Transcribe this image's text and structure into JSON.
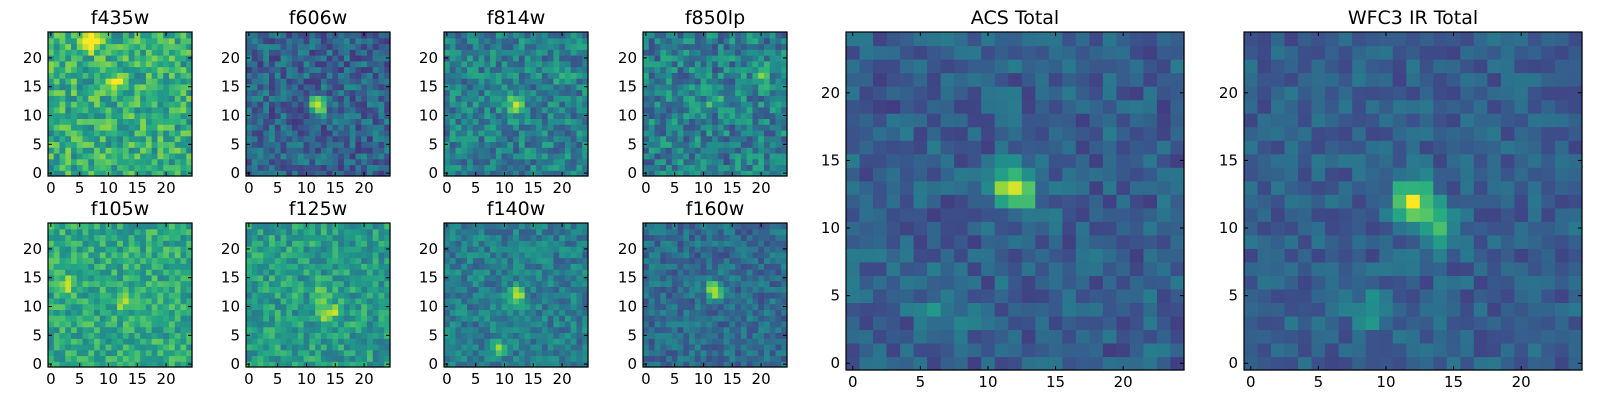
{
  "colors": {
    "colormap": "viridis",
    "palette": [
      "#440154",
      "#472d7b",
      "#3b528b",
      "#2c728e",
      "#21918c",
      "#28ae80",
      "#5ec962",
      "#addc30",
      "#fde725"
    ],
    "axis": "#000000",
    "background": "#ffffff"
  },
  "chart_data": [
    {
      "type": "heatmap",
      "title": "f435w",
      "grid_size": 25,
      "xlim": [
        -0.5,
        24.5
      ],
      "ylim": [
        -0.5,
        24.5
      ],
      "xticks": [
        0,
        5,
        10,
        15,
        20
      ],
      "yticks": [
        0,
        5,
        10,
        15,
        20
      ],
      "xtick_labels": [
        "0",
        "5",
        "10",
        "15",
        "20"
      ],
      "ytick_labels": [
        "0",
        "5",
        "10",
        "15",
        "20"
      ],
      "grid": false,
      "colormap": "viridis",
      "noise_level": 0.62,
      "noise_spread": 0.2,
      "sources": [
        {
          "x": 7,
          "y": 23,
          "peak": 0.9
        },
        {
          "x": 11,
          "y": 16,
          "peak": 0.4
        }
      ]
    },
    {
      "type": "heatmap",
      "title": "f606w",
      "grid_size": 25,
      "xlim": [
        -0.5,
        24.5
      ],
      "ylim": [
        -0.5,
        24.5
      ],
      "xticks": [
        0,
        5,
        10,
        15,
        20
      ],
      "yticks": [
        0,
        5,
        10,
        15,
        20
      ],
      "xtick_labels": [
        "0",
        "5",
        "10",
        "15",
        "20"
      ],
      "ytick_labels": [
        "0",
        "5",
        "10",
        "15",
        "20"
      ],
      "grid": false,
      "colormap": "viridis",
      "noise_level": 0.32,
      "noise_spread": 0.17,
      "sources": [
        {
          "x": 12,
          "y": 12,
          "peak": 0.72
        }
      ]
    },
    {
      "type": "heatmap",
      "title": "f814w",
      "grid_size": 25,
      "xlim": [
        -0.5,
        24.5
      ],
      "ylim": [
        -0.5,
        24.5
      ],
      "xticks": [
        0,
        5,
        10,
        15,
        20
      ],
      "yticks": [
        0,
        5,
        10,
        15,
        20
      ],
      "xtick_labels": [
        "0",
        "5",
        "10",
        "15",
        "20"
      ],
      "ytick_labels": [
        "0",
        "5",
        "10",
        "15",
        "20"
      ],
      "grid": false,
      "colormap": "viridis",
      "noise_level": 0.43,
      "noise_spread": 0.18,
      "sources": [
        {
          "x": 12,
          "y": 12,
          "peak": 0.55
        },
        {
          "x": 20,
          "y": 17,
          "peak": 0.3
        }
      ]
    },
    {
      "type": "heatmap",
      "title": "f850lp",
      "grid_size": 25,
      "xlim": [
        -0.5,
        24.5
      ],
      "ylim": [
        -0.5,
        24.5
      ],
      "xticks": [
        0,
        5,
        10,
        15,
        20
      ],
      "yticks": [
        0,
        5,
        10,
        15,
        20
      ],
      "xtick_labels": [
        "0",
        "5",
        "10",
        "15",
        "20"
      ],
      "ytick_labels": [
        "0",
        "5",
        "10",
        "15",
        "20"
      ],
      "grid": false,
      "colormap": "viridis",
      "noise_level": 0.43,
      "noise_spread": 0.2,
      "sources": [
        {
          "x": 20,
          "y": 17,
          "peak": 0.45
        },
        {
          "x": 12,
          "y": 13,
          "peak": 0.3
        }
      ]
    },
    {
      "type": "heatmap",
      "title": "f105w",
      "grid_size": 25,
      "xlim": [
        -0.5,
        24.5
      ],
      "ylim": [
        -0.5,
        24.5
      ],
      "xticks": [
        0,
        5,
        10,
        15,
        20
      ],
      "yticks": [
        0,
        5,
        10,
        15,
        20
      ],
      "xtick_labels": [
        "0",
        "5",
        "10",
        "15",
        "20"
      ],
      "ytick_labels": [
        "0",
        "5",
        "10",
        "15",
        "20"
      ],
      "grid": false,
      "colormap": "viridis",
      "noise_level": 0.6,
      "noise_spread": 0.16,
      "sources": [
        {
          "x": 13,
          "y": 11,
          "peak": 0.38
        },
        {
          "x": 3,
          "y": 14,
          "peak": 0.25
        }
      ]
    },
    {
      "type": "heatmap",
      "title": "f125w",
      "grid_size": 25,
      "xlim": [
        -0.5,
        24.5
      ],
      "ylim": [
        -0.5,
        24.5
      ],
      "xticks": [
        0,
        5,
        10,
        15,
        20
      ],
      "yticks": [
        0,
        5,
        10,
        15,
        20
      ],
      "xtick_labels": [
        "0",
        "5",
        "10",
        "15",
        "20"
      ],
      "ytick_labels": [
        "0",
        "5",
        "10",
        "15",
        "20"
      ],
      "grid": false,
      "colormap": "viridis",
      "noise_level": 0.55,
      "noise_spread": 0.16,
      "sources": [
        {
          "x": 14,
          "y": 9,
          "peak": 0.4
        },
        {
          "x": 13,
          "y": 12,
          "peak": 0.2
        }
      ]
    },
    {
      "type": "heatmap",
      "title": "f140w",
      "grid_size": 25,
      "xlim": [
        -0.5,
        24.5
      ],
      "ylim": [
        -0.5,
        24.5
      ],
      "xticks": [
        0,
        5,
        10,
        15,
        20
      ],
      "yticks": [
        0,
        5,
        10,
        15,
        20
      ],
      "xtick_labels": [
        "0",
        "5",
        "10",
        "15",
        "20"
      ],
      "ytick_labels": [
        "0",
        "5",
        "10",
        "15",
        "20"
      ],
      "grid": false,
      "colormap": "viridis",
      "noise_level": 0.42,
      "noise_spread": 0.14,
      "sources": [
        {
          "x": 12,
          "y": 12,
          "peak": 0.5
        },
        {
          "x": 9,
          "y": 3,
          "peak": 0.3
        }
      ]
    },
    {
      "type": "heatmap",
      "title": "f160w",
      "grid_size": 25,
      "xlim": [
        -0.5,
        24.5
      ],
      "ylim": [
        -0.5,
        24.5
      ],
      "xticks": [
        0,
        5,
        10,
        15,
        20
      ],
      "yticks": [
        0,
        5,
        10,
        15,
        20
      ],
      "xtick_labels": [
        "0",
        "5",
        "10",
        "15",
        "20"
      ],
      "ytick_labels": [
        "0",
        "5",
        "10",
        "15",
        "20"
      ],
      "grid": false,
      "colormap": "viridis",
      "noise_level": 0.35,
      "noise_spread": 0.13,
      "sources": [
        {
          "x": 12,
          "y": 13,
          "peak": 0.62
        }
      ]
    },
    {
      "type": "heatmap",
      "title": "ACS Total",
      "grid_size": 25,
      "xlim": [
        -0.5,
        24.5
      ],
      "ylim": [
        -0.5,
        24.5
      ],
      "xticks": [
        0,
        5,
        10,
        15,
        20
      ],
      "yticks": [
        0,
        5,
        10,
        15,
        20
      ],
      "xtick_labels": [
        "0",
        "5",
        "10",
        "15",
        "20"
      ],
      "ytick_labels": [
        "0",
        "5",
        "10",
        "15",
        "20"
      ],
      "grid": false,
      "colormap": "viridis",
      "noise_level": 0.3,
      "noise_spread": 0.12,
      "sources": [
        {
          "x": 12,
          "y": 13,
          "peak": 0.66
        },
        {
          "x": 7,
          "y": 4,
          "peak": 0.2
        }
      ]
    },
    {
      "type": "heatmap",
      "title": "WFC3 IR Total",
      "grid_size": 25,
      "xlim": [
        -0.5,
        24.5
      ],
      "ylim": [
        -0.5,
        24.5
      ],
      "xticks": [
        0,
        5,
        10,
        15,
        20
      ],
      "yticks": [
        0,
        5,
        10,
        15,
        20
      ],
      "xtick_labels": [
        "0",
        "5",
        "10",
        "15",
        "20"
      ],
      "ytick_labels": [
        "0",
        "5",
        "10",
        "15",
        "20"
      ],
      "grid": false,
      "colormap": "viridis",
      "noise_level": 0.3,
      "noise_spread": 0.1,
      "sources": [
        {
          "x": 12,
          "y": 12,
          "peak": 0.66
        },
        {
          "x": 14,
          "y": 10,
          "peak": 0.35
        },
        {
          "x": 9,
          "y": 4,
          "peak": 0.22
        }
      ]
    }
  ]
}
